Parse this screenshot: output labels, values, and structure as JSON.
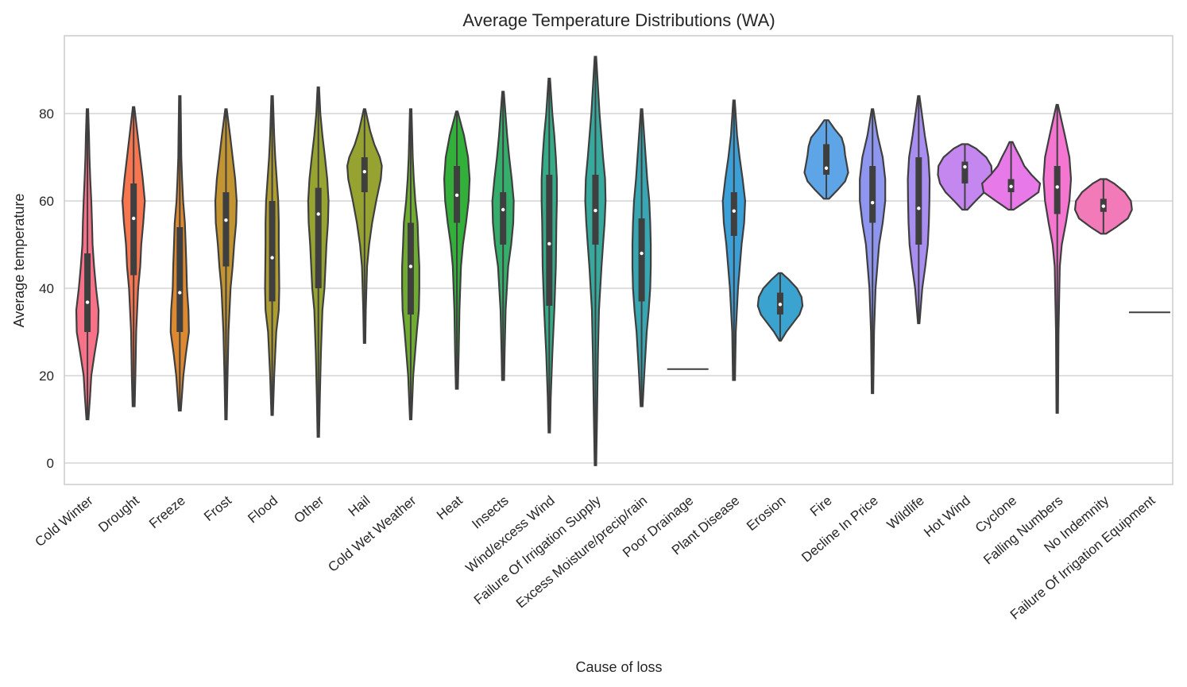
{
  "chart_data": {
    "type": "violin",
    "title": "Average Temperature Distributions (WA)",
    "xlabel": "Cause of loss",
    "ylabel": "Average temperature",
    "ylim": [
      -5,
      98
    ],
    "yticks": [
      0,
      20,
      40,
      60,
      80
    ],
    "grid": true,
    "categories": [
      "Cold Winter",
      "Drought",
      "Freeze",
      "Frost",
      "Flood",
      "Other",
      "Hail",
      "Cold Wet Weather",
      "Heat",
      "Insects",
      "Wind/excess Wind",
      "Failure Of Irrigation Supply",
      "Excess Moisture/precip/rain",
      "Poor Drainage",
      "Plant Disease",
      "Erosion",
      "Fire",
      "Decline In Price",
      "Wildlife",
      "Hot Wind",
      "Cyclone",
      "Falling Numbers",
      "No Indemnity",
      "Failure Of Irrigation Equipment"
    ],
    "series": [
      {
        "category": "Cold Winter",
        "color": "#f77189",
        "min": 10,
        "q1": 30,
        "median": 36.8,
        "q3": 48,
        "max": 81,
        "density": [
          [
            10,
            0.4
          ],
          [
            15,
            1
          ],
          [
            20,
            1.5
          ],
          [
            25,
            2.8
          ],
          [
            30,
            4.2
          ],
          [
            35,
            4.4
          ],
          [
            40,
            3.4
          ],
          [
            45,
            2.6
          ],
          [
            50,
            2
          ],
          [
            55,
            1.8
          ],
          [
            60,
            1.5
          ],
          [
            65,
            1.1
          ],
          [
            70,
            0.8
          ],
          [
            75,
            0.6
          ],
          [
            81,
            0.3
          ]
        ]
      },
      {
        "category": "Drought",
        "color": "#f7754f",
        "min": 13,
        "q1": 43,
        "median": 56,
        "q3": 64,
        "max": 81.5,
        "density": [
          [
            13,
            0.4
          ],
          [
            20,
            0.7
          ],
          [
            30,
            1
          ],
          [
            40,
            1.8
          ],
          [
            45,
            2.6
          ],
          [
            50,
            3
          ],
          [
            55,
            3.8
          ],
          [
            60,
            4.4
          ],
          [
            65,
            3.6
          ],
          [
            70,
            2.6
          ],
          [
            75,
            1.6
          ],
          [
            81.5,
            0.3
          ]
        ]
      },
      {
        "category": "Freeze",
        "color": "#dc8932",
        "min": 12,
        "q1": 30,
        "median": 39,
        "q3": 54,
        "max": 84,
        "density": [
          [
            12,
            0.4
          ],
          [
            20,
            1.4
          ],
          [
            25,
            2.4
          ],
          [
            30,
            3.6
          ],
          [
            35,
            3.4
          ],
          [
            40,
            2.8
          ],
          [
            45,
            2.6
          ],
          [
            50,
            2.3
          ],
          [
            55,
            2
          ],
          [
            60,
            1.3
          ],
          [
            65,
            0.9
          ],
          [
            70,
            0.6
          ],
          [
            75,
            0.5
          ],
          [
            84,
            0.3
          ]
        ]
      },
      {
        "category": "Frost",
        "color": "#c39532",
        "min": 10,
        "q1": 45,
        "median": 55.6,
        "q3": 62,
        "max": 81,
        "density": [
          [
            10,
            0.3
          ],
          [
            20,
            0.6
          ],
          [
            30,
            1
          ],
          [
            40,
            1.8
          ],
          [
            45,
            2.6
          ],
          [
            50,
            3.2
          ],
          [
            55,
            4
          ],
          [
            60,
            4.2
          ],
          [
            65,
            3.6
          ],
          [
            70,
            2.6
          ],
          [
            75,
            1.6
          ],
          [
            81,
            0.3
          ]
        ]
      },
      {
        "category": "Flood",
        "color": "#ae9d31",
        "min": 11,
        "q1": 37,
        "median": 47,
        "q3": 60,
        "max": 84,
        "density": [
          [
            11,
            0.3
          ],
          [
            20,
            0.8
          ],
          [
            30,
            1.6
          ],
          [
            35,
            2.6
          ],
          [
            40,
            2.8
          ],
          [
            45,
            2.7
          ],
          [
            50,
            2.6
          ],
          [
            55,
            2.6
          ],
          [
            60,
            2.4
          ],
          [
            65,
            1.8
          ],
          [
            70,
            1.2
          ],
          [
            75,
            0.8
          ],
          [
            84,
            0.3
          ]
        ]
      },
      {
        "category": "Other",
        "color": "#97a431",
        "min": 6,
        "q1": 40,
        "median": 57,
        "q3": 63,
        "max": 86,
        "density": [
          [
            6,
            0.3
          ],
          [
            15,
            0.6
          ],
          [
            25,
            1
          ],
          [
            35,
            1.6
          ],
          [
            40,
            2.4
          ],
          [
            50,
            3.2
          ],
          [
            55,
            3.8
          ],
          [
            60,
            4
          ],
          [
            65,
            3.5
          ],
          [
            70,
            2.6
          ],
          [
            75,
            1.6
          ],
          [
            80,
            0.8
          ],
          [
            86,
            0.3
          ]
        ]
      },
      {
        "category": "Hail",
        "color": "#96a331",
        "min": 27.5,
        "q1": 62,
        "median": 66.7,
        "q3": 70,
        "max": 81,
        "density": [
          [
            27.5,
            0.3
          ],
          [
            35,
            0.5
          ],
          [
            45,
            1
          ],
          [
            50,
            1.8
          ],
          [
            55,
            3
          ],
          [
            60,
            4.6
          ],
          [
            65,
            6.4
          ],
          [
            68,
            6.8
          ],
          [
            70,
            6
          ],
          [
            73,
            3.8
          ],
          [
            76,
            2.2
          ],
          [
            81,
            0.3
          ]
        ]
      },
      {
        "category": "Cold Wet Weather",
        "color": "#6fac31",
        "min": 10,
        "q1": 34,
        "median": 45,
        "q3": 55,
        "max": 81,
        "density": [
          [
            10,
            0.3
          ],
          [
            20,
            1
          ],
          [
            30,
            2.4
          ],
          [
            35,
            3.2
          ],
          [
            40,
            3.4
          ],
          [
            45,
            3.4
          ],
          [
            50,
            3
          ],
          [
            55,
            2.7
          ],
          [
            60,
            1.8
          ],
          [
            65,
            1.2
          ],
          [
            70,
            0.8
          ],
          [
            81,
            0.3
          ]
        ]
      },
      {
        "category": "Heat",
        "color": "#33b039",
        "min": 17,
        "q1": 55,
        "median": 61.3,
        "q3": 68,
        "max": 80.5,
        "density": [
          [
            17,
            0.4
          ],
          [
            25,
            0.7
          ],
          [
            35,
            1
          ],
          [
            45,
            1.6
          ],
          [
            50,
            2.4
          ],
          [
            55,
            3.6
          ],
          [
            60,
            4.6
          ],
          [
            65,
            5
          ],
          [
            70,
            4.4
          ],
          [
            75,
            2.8
          ],
          [
            80.5,
            0.3
          ]
        ]
      },
      {
        "category": "Insects",
        "color": "#35ad6b",
        "min": 19,
        "q1": 50,
        "median": 58,
        "q3": 62,
        "max": 85,
        "density": [
          [
            19,
            0.4
          ],
          [
            25,
            0.6
          ],
          [
            35,
            1
          ],
          [
            45,
            2
          ],
          [
            50,
            3.2
          ],
          [
            55,
            4
          ],
          [
            60,
            4.2
          ],
          [
            65,
            3.4
          ],
          [
            70,
            2.4
          ],
          [
            75,
            1.6
          ],
          [
            85,
            0.3
          ]
        ]
      },
      {
        "category": "Wind/excess Wind",
        "color": "#36ab88",
        "min": 7,
        "q1": 36,
        "median": 50.2,
        "q3": 66,
        "max": 88,
        "density": [
          [
            7,
            0.3
          ],
          [
            15,
            0.6
          ],
          [
            25,
            1.2
          ],
          [
            35,
            2
          ],
          [
            45,
            2.6
          ],
          [
            55,
            2.8
          ],
          [
            60,
            3
          ],
          [
            65,
            3
          ],
          [
            70,
            2.6
          ],
          [
            75,
            2
          ],
          [
            80,
            1.2
          ],
          [
            88,
            0.3
          ]
        ]
      },
      {
        "category": "Failure Of Irrigation Supply",
        "color": "#37a99d",
        "min": -0.5,
        "q1": 50,
        "median": 57.8,
        "q3": 66,
        "max": 93,
        "density": [
          [
            -0.5,
            0.3
          ],
          [
            10,
            0.6
          ],
          [
            25,
            1
          ],
          [
            35,
            1.4
          ],
          [
            45,
            2.4
          ],
          [
            50,
            3
          ],
          [
            55,
            3.6
          ],
          [
            60,
            4
          ],
          [
            65,
            3.8
          ],
          [
            70,
            3
          ],
          [
            80,
            1.6
          ],
          [
            93,
            0.3
          ]
        ]
      },
      {
        "category": "Excess Moisture/precip/rain",
        "color": "#38a7b2",
        "min": 13,
        "q1": 37,
        "median": 48,
        "q3": 56,
        "max": 81,
        "density": [
          [
            13,
            0.4
          ],
          [
            20,
            1
          ],
          [
            30,
            2
          ],
          [
            35,
            2.8
          ],
          [
            40,
            3.4
          ],
          [
            45,
            3.6
          ],
          [
            50,
            3.6
          ],
          [
            55,
            3.4
          ],
          [
            60,
            3
          ],
          [
            65,
            2.2
          ],
          [
            70,
            1.6
          ],
          [
            81,
            0.3
          ]
        ]
      },
      {
        "category": "Poor Drainage",
        "color": "#39a3c5",
        "min": 21.5,
        "q1": 21.5,
        "median": 21.5,
        "q3": 21.5,
        "max": 21.5,
        "density": []
      },
      {
        "category": "Plant Disease",
        "color": "#3b9fd8",
        "min": 19,
        "q1": 52,
        "median": 57.7,
        "q3": 62,
        "max": 83,
        "density": [
          [
            19,
            0.4
          ],
          [
            30,
            0.7
          ],
          [
            40,
            1.6
          ],
          [
            50,
            3
          ],
          [
            55,
            4
          ],
          [
            60,
            4.4
          ],
          [
            65,
            3.4
          ],
          [
            70,
            2.2
          ],
          [
            75,
            1.2
          ],
          [
            83,
            0.3
          ]
        ]
      },
      {
        "category": "Erosion",
        "color": "#3ba3d0",
        "min": 28,
        "q1": 34,
        "median": 36.3,
        "q3": 39,
        "max": 43.5,
        "density": [
          [
            28,
            0.3
          ],
          [
            30,
            2.4
          ],
          [
            32,
            5
          ],
          [
            34,
            7.6
          ],
          [
            36,
            8.8
          ],
          [
            38,
            8.4
          ],
          [
            40,
            6.6
          ],
          [
            42,
            3.4
          ],
          [
            43.5,
            0.6
          ]
        ]
      },
      {
        "category": "Fire",
        "color": "#5ea5e8",
        "min": 60.5,
        "q1": 66,
        "median": 67.5,
        "q3": 73,
        "max": 78.5,
        "density": [
          [
            60.5,
            1
          ],
          [
            62.5,
            4.4
          ],
          [
            64.5,
            7.4
          ],
          [
            66.5,
            8.6
          ],
          [
            68.5,
            8
          ],
          [
            70.5,
            7.4
          ],
          [
            72.5,
            7
          ],
          [
            74.5,
            6
          ],
          [
            76.5,
            3.2
          ],
          [
            78.5,
            0.8
          ]
        ]
      },
      {
        "category": "Decline In Price",
        "color": "#8e96f0",
        "min": 16,
        "q1": 55,
        "median": 59.6,
        "q3": 68,
        "max": 81,
        "density": [
          [
            16,
            0.3
          ],
          [
            30,
            0.6
          ],
          [
            40,
            1.2
          ],
          [
            50,
            2.6
          ],
          [
            55,
            4
          ],
          [
            60,
            5
          ],
          [
            65,
            5
          ],
          [
            70,
            4
          ],
          [
            75,
            2
          ],
          [
            81,
            0.3
          ]
        ]
      },
      {
        "category": "Wildlife",
        "color": "#a78ef0",
        "min": 32,
        "q1": 50,
        "median": 58.3,
        "q3": 70,
        "max": 84,
        "density": [
          [
            32,
            0.3
          ],
          [
            40,
            1.4
          ],
          [
            45,
            2.6
          ],
          [
            50,
            3.6
          ],
          [
            55,
            4
          ],
          [
            60,
            4.2
          ],
          [
            65,
            4.3
          ],
          [
            70,
            3.8
          ],
          [
            75,
            2.4
          ],
          [
            84,
            0.3
          ]
        ]
      },
      {
        "category": "Hot Wind",
        "color": "#c487f0",
        "min": 58,
        "q1": 64,
        "median": 67.8,
        "q3": 69,
        "max": 73,
        "density": [
          [
            58,
            1
          ],
          [
            60,
            4.2
          ],
          [
            62,
            7.6
          ],
          [
            64,
            9.8
          ],
          [
            66,
            10.6
          ],
          [
            68,
            10.4
          ],
          [
            70,
            8.4
          ],
          [
            72,
            4.4
          ],
          [
            73,
            1.2
          ]
        ]
      },
      {
        "category": "Cyclone",
        "color": "#e77ae8",
        "min": 58,
        "q1": 62,
        "median": 63.3,
        "q3": 65,
        "max": 73.5,
        "density": [
          [
            58,
            1
          ],
          [
            60,
            6
          ],
          [
            62,
            10.8
          ],
          [
            64,
            11.4
          ],
          [
            66,
            8
          ],
          [
            68,
            5.2
          ],
          [
            70,
            3.6
          ],
          [
            72,
            1.8
          ],
          [
            73.5,
            0.6
          ]
        ]
      },
      {
        "category": "Falling Numbers",
        "color": "#f476d1",
        "min": 11.5,
        "q1": 57,
        "median": 63.2,
        "q3": 68,
        "max": 82,
        "density": [
          [
            11.5,
            0.3
          ],
          [
            30,
            0.5
          ],
          [
            45,
            1
          ],
          [
            50,
            1.8
          ],
          [
            55,
            3.4
          ],
          [
            60,
            4.8
          ],
          [
            65,
            5.4
          ],
          [
            70,
            4.8
          ],
          [
            75,
            3
          ],
          [
            82,
            0.3
          ]
        ]
      },
      {
        "category": "No Indemnity",
        "color": "#f27ab9",
        "min": 52.5,
        "q1": 57.5,
        "median": 58.8,
        "q3": 60.5,
        "max": 65,
        "density": [
          [
            52.5,
            1
          ],
          [
            54,
            5
          ],
          [
            56,
            9.6
          ],
          [
            58,
            11.2
          ],
          [
            60,
            10.8
          ],
          [
            62,
            8.4
          ],
          [
            64,
            4.2
          ],
          [
            65,
            1.2
          ]
        ]
      },
      {
        "category": "Failure Of Irrigation Equipment",
        "color": "#f77189",
        "min": 34.5,
        "q1": 34.5,
        "median": 34.5,
        "q3": 34.5,
        "max": 34.5,
        "density": []
      }
    ]
  }
}
